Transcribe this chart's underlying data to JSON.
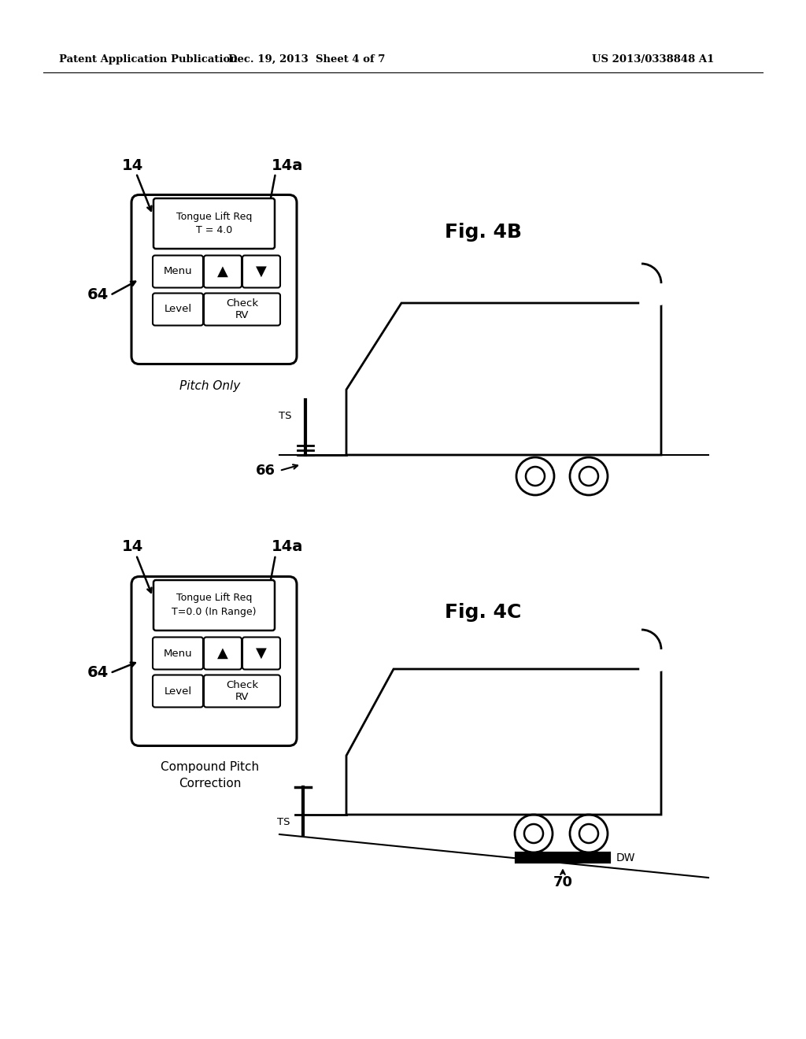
{
  "bg_color": "#ffffff",
  "header_left": "Patent Application Publication",
  "header_mid": "Dec. 19, 2013  Sheet 4 of 7",
  "header_right": "US 2013/0338848 A1",
  "fig4b_label": "Fig. 4B",
  "fig4c_label": "Fig. 4C",
  "fig4b_caption": "Pitch Only",
  "fig4c_caption": "Compound Pitch\nCorrection",
  "display_text_4b": "Tongue Lift Req\nT = 4.0",
  "display_text_4c": "Tongue Lift Req\nT=0.0 (In Range)",
  "btn_menu": "Menu",
  "btn_up": "▲",
  "btn_down": "▼",
  "btn_level": "Level",
  "btn_check": "Check\nRV",
  "label_14_top": "14",
  "label_14a_top": "14a",
  "label_64_top": "64",
  "label_TS_top": "TS",
  "label_66": "66",
  "label_14_bot": "14",
  "label_14a_bot": "14a",
  "label_64_bot": "64",
  "label_TS_bot": "TS",
  "label_DW": "DW",
  "label_70": "70"
}
